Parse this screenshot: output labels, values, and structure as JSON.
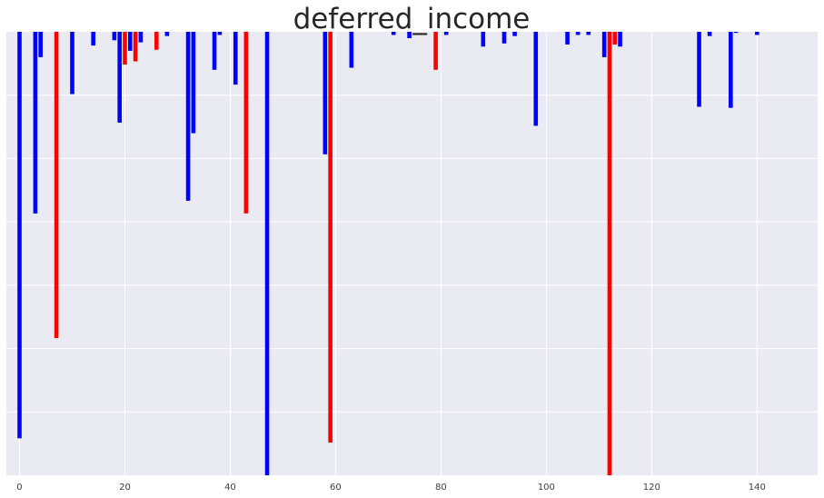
{
  "chart_data": {
    "type": "bar",
    "title": "deferred_income",
    "xlabel": "",
    "ylabel": "",
    "xlim": [
      -2.5,
      151.5
    ],
    "ylim": [
      -4200000,
      0
    ],
    "x_ticks": [
      0,
      20,
      40,
      60,
      80,
      100,
      120,
      140
    ],
    "y_ticks_labeled": false,
    "grid": true,
    "colors": {
      "pos": "#0000ff",
      "neg": "#ff0000",
      "background": "#eaeaf2",
      "grid": "#ffffff"
    },
    "series": [
      {
        "color": "#0000ff",
        "x": [
          0,
          3,
          4,
          10,
          14,
          18,
          19,
          21,
          23,
          28,
          32,
          33,
          37,
          38,
          41,
          47,
          58,
          63,
          71,
          74,
          81,
          88,
          92,
          94,
          98,
          104,
          106,
          108,
          111,
          114,
          129,
          131,
          135,
          136,
          140
        ],
        "values": [
          -3850000,
          -1720000,
          -240000,
          -590000,
          -130000,
          -80000,
          -860000,
          -180000,
          -100000,
          -40000,
          -1600000,
          -960000,
          -360000,
          -30000,
          -500000,
          -4200000,
          -1160000,
          -340000,
          -30000,
          -60000,
          -30000,
          -140000,
          -110000,
          -40000,
          -890000,
          -120000,
          -30000,
          -30000,
          -240000,
          -140000,
          -710000,
          -40000,
          -720000,
          -10000,
          -30000
        ]
      },
      {
        "color": "#ff0000",
        "x": [
          7,
          20,
          22,
          26,
          43,
          59,
          79,
          112,
          113
        ],
        "values": [
          -2900000,
          -310000,
          -280000,
          -170000,
          -1720000,
          -3890000,
          -360000,
          -4380000,
          -120000
        ]
      }
    ]
  }
}
